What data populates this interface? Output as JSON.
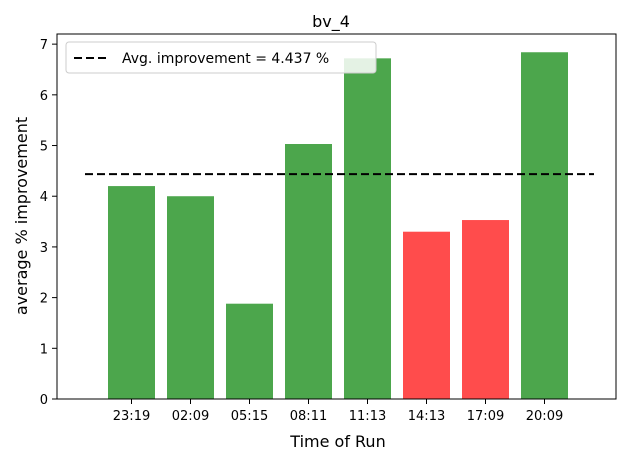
{
  "chart_data": {
    "type": "bar",
    "title": "bv_4",
    "xlabel": "Time of Run",
    "ylabel": "average % improvement",
    "categories": [
      "23:19",
      "02:09",
      "05:15",
      "08:11",
      "11:13",
      "14:13",
      "17:09",
      "20:09"
    ],
    "values": [
      4.2,
      4.0,
      1.88,
      5.03,
      6.72,
      3.3,
      3.53,
      6.84
    ],
    "bar_colors": [
      "#4ca64c",
      "#4ca64c",
      "#4ca64c",
      "#4ca64c",
      "#4ca64c",
      "#ff4c4c",
      "#ff4c4c",
      "#4ca64c"
    ],
    "ylim": [
      0,
      7.2
    ],
    "yticks": [
      0,
      1,
      2,
      3,
      4,
      5,
      6,
      7
    ],
    "average_line": {
      "value": 4.437,
      "color": "#000000",
      "style": "dashed"
    },
    "legend": {
      "position": "top-left",
      "entries": [
        "Avg. improvement = 4.437 %"
      ]
    },
    "grid": false
  }
}
